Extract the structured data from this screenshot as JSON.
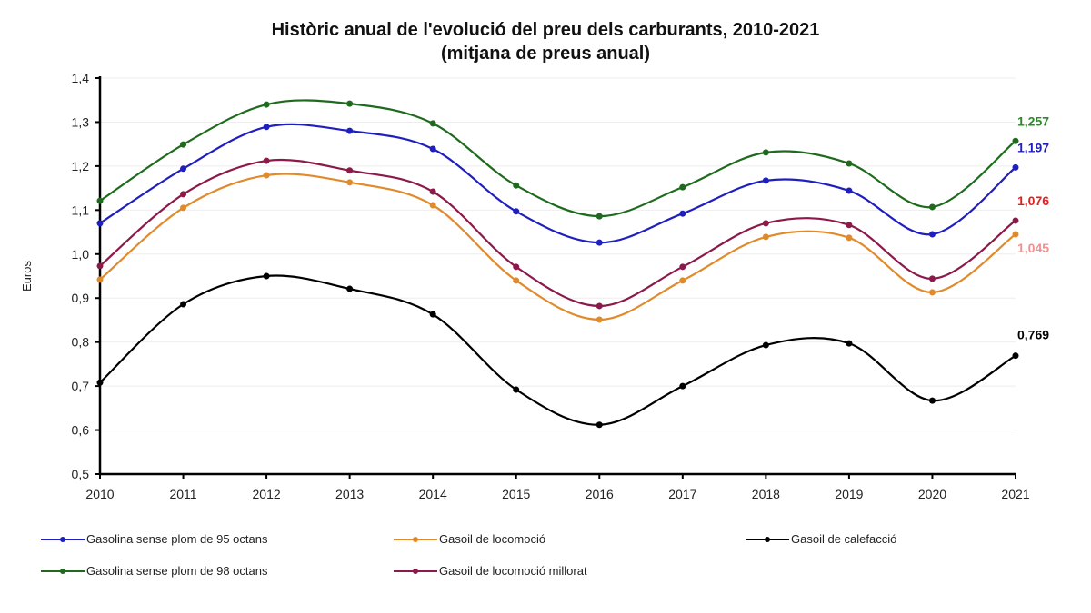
{
  "chart_data": {
    "type": "line",
    "title": "Històric anual de l'evolució del preu dels carburants, 2010-2021",
    "subtitle": "(mitjana de preus anual)",
    "ylabel": "Euros",
    "xlabel": "",
    "ylim": [
      0.5,
      1.4
    ],
    "yticks": [
      "0,5",
      "0,6",
      "0,7",
      "0,8",
      "0,9",
      "1,0",
      "1,1",
      "1,2",
      "1,3",
      "1,4"
    ],
    "grid": true,
    "legend_position": "bottom",
    "categories": [
      "2010",
      "2011",
      "2012",
      "2013",
      "2014",
      "2015",
      "2016",
      "2017",
      "2018",
      "2019",
      "2020",
      "2021"
    ],
    "series": [
      {
        "name": "Gasolina sense plom de 95 octans",
        "color": "#1f1fbf",
        "label_color": "#1f1fbf",
        "end_label": "1,197",
        "values": [
          1.07,
          1.194,
          1.289,
          1.28,
          1.239,
          1.097,
          1.026,
          1.092,
          1.167,
          1.144,
          1.045,
          1.197
        ]
      },
      {
        "name": "Gasolina sense plom de 98 octans",
        "color": "#1e6b1e",
        "label_color": "#2a8a2a",
        "end_label": "1,257",
        "values": [
          1.121,
          1.249,
          1.34,
          1.342,
          1.297,
          1.156,
          1.086,
          1.152,
          1.231,
          1.206,
          1.107,
          1.257
        ]
      },
      {
        "name": "Gasoil de locomoció",
        "color": "#e08a2c",
        "label_color": "#f09090",
        "end_label": "1,045",
        "values": [
          0.942,
          1.105,
          1.179,
          1.163,
          1.111,
          0.94,
          0.851,
          0.94,
          1.039,
          1.037,
          0.913,
          1.045
        ]
      },
      {
        "name": "Gasoil de locomoció millorat",
        "color": "#8b1a4a",
        "label_color": "#e02020",
        "end_label": "1,076",
        "values": [
          0.973,
          1.136,
          1.212,
          1.19,
          1.142,
          0.971,
          0.882,
          0.971,
          1.07,
          1.066,
          0.944,
          1.076
        ]
      },
      {
        "name": "Gasoil de calefacció",
        "color": "#000000",
        "label_color": "#000000",
        "end_label": "0,769",
        "values": [
          0.708,
          0.886,
          0.95,
          0.921,
          0.863,
          0.692,
          0.612,
          0.7,
          0.793,
          0.797,
          0.667,
          0.769
        ]
      }
    ]
  }
}
